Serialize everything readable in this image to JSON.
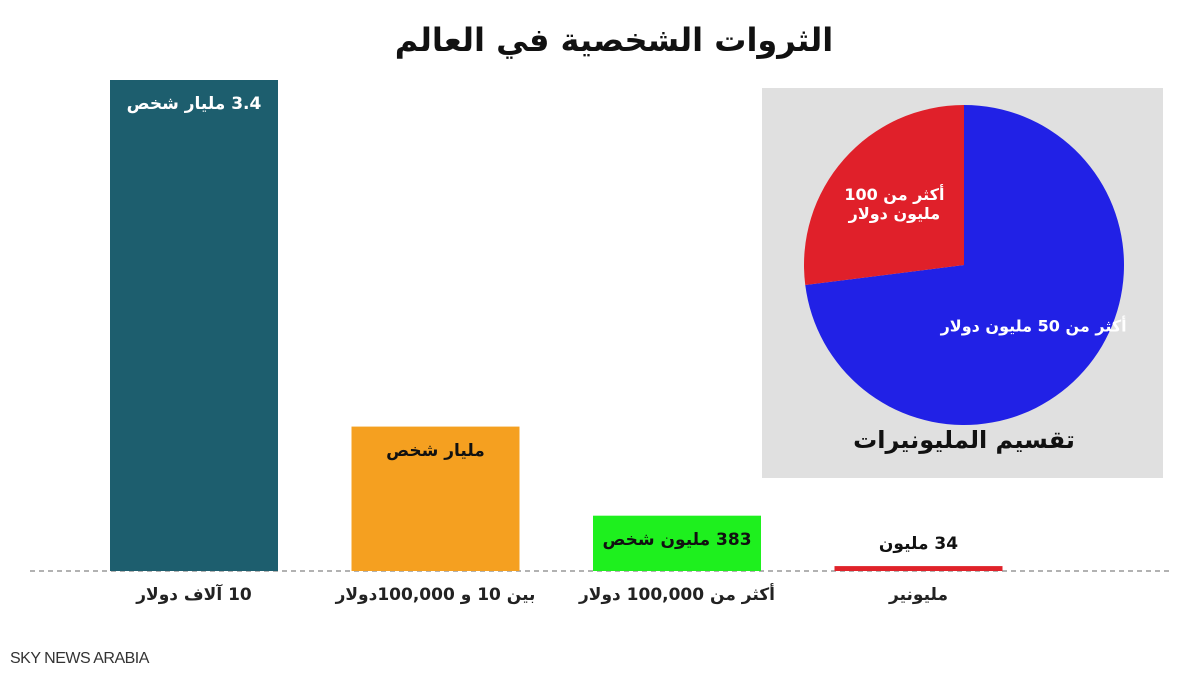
{
  "chart_data": [
    {
      "type": "bar",
      "title": "الثروات الشخصية في العالم",
      "categories": [
        "10 آلاف دولار",
        "بين 10 و 100,000دولار",
        "أكثر من 100,000 دولار",
        "مليونير"
      ],
      "values": [
        3400000000,
        1000000000,
        383000000,
        34000000
      ],
      "value_labels": [
        "3.4 مليار شخص",
        "مليار شخص",
        "383 مليون شخص",
        "34 مليون"
      ],
      "colors": [
        "#1d5e6e",
        "#f5a020",
        "#1ef01e",
        "#e0222a"
      ],
      "source": "SKY NEWS ARABIA"
    },
    {
      "type": "pie",
      "title": "تقسيم المليونيرات",
      "categories": [
        "أكثر من 50 مليون دولار",
        "أكثر من 100 مليون دولار"
      ],
      "values": [
        73,
        27
      ],
      "colors": [
        "#2121e6",
        "#e0202a"
      ]
    }
  ]
}
